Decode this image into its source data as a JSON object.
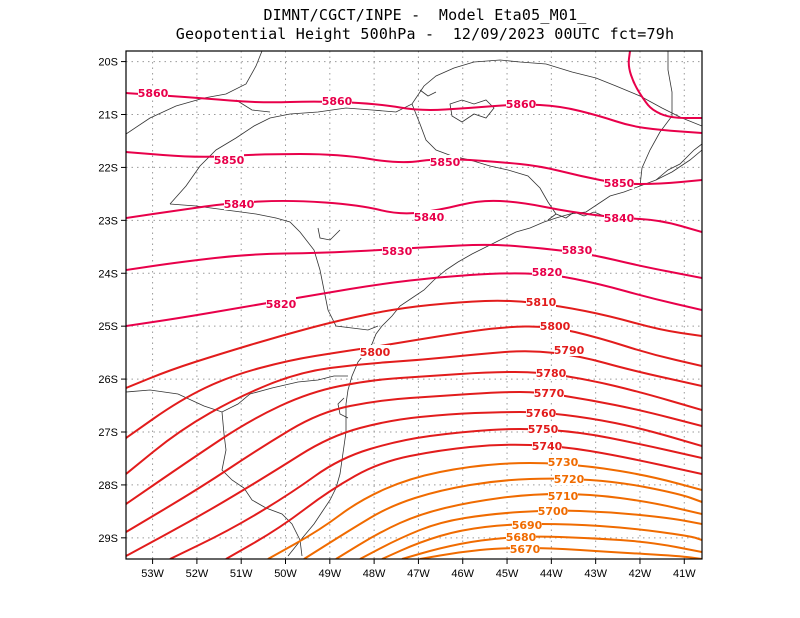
{
  "title": {
    "line1": "DIMNT/CGCT/INPE -  Model Eta05_M01_",
    "line2": "Geopotential Height 500hPa -  12/09/2023 00UTC fct=79h"
  },
  "chart_data": {
    "type": "contour",
    "variable": "Geopotential Height 500hPa",
    "units": "m",
    "xlim": [
      -53.6,
      -40.6
    ],
    "ylim": [
      -29.4,
      -19.8
    ],
    "x_ticks": [
      -53,
      -52,
      -51,
      -50,
      -49,
      -48,
      -47,
      -46,
      -45,
      -44,
      -43,
      -42,
      -41
    ],
    "x_tick_labels": [
      "53W",
      "52W",
      "51W",
      "50W",
      "49W",
      "48W",
      "47W",
      "46W",
      "45W",
      "44W",
      "43W",
      "42W",
      "41W"
    ],
    "y_ticks": [
      -20,
      -21,
      -22,
      -23,
      -24,
      -25,
      -26,
      -27,
      -28,
      -29
    ],
    "y_tick_labels": [
      "20S",
      "21S",
      "22S",
      "23S",
      "24S",
      "25S",
      "26S",
      "27S",
      "28S",
      "29S"
    ],
    "grid": true,
    "contour_interval": 10,
    "contours": [
      {
        "level": 5860,
        "labels": [
          "5860",
          "5860",
          "5860"
        ]
      },
      {
        "level": 5850,
        "labels": [
          "5850",
          "5850",
          "5850"
        ]
      },
      {
        "level": 5840,
        "labels": [
          "5840",
          "5840",
          "5840"
        ]
      },
      {
        "level": 5830,
        "labels": [
          "5830",
          "5830"
        ]
      },
      {
        "level": 5820,
        "labels": [
          "5820",
          "5820"
        ]
      },
      {
        "level": 5810,
        "labels": [
          "5810"
        ]
      },
      {
        "level": 5800,
        "labels": [
          "5800",
          "5800"
        ]
      },
      {
        "level": 5790,
        "labels": [
          "5790"
        ]
      },
      {
        "level": 5780,
        "labels": [
          "5780"
        ]
      },
      {
        "level": 5770,
        "labels": [
          "5770"
        ]
      },
      {
        "level": 5760,
        "labels": [
          "5760"
        ]
      },
      {
        "level": 5750,
        "labels": [
          "5750"
        ]
      },
      {
        "level": 5740,
        "labels": [
          "5740"
        ]
      },
      {
        "level": 5730,
        "labels": [
          "5730"
        ]
      },
      {
        "level": 5720,
        "labels": [
          "5720"
        ]
      },
      {
        "level": 5710,
        "labels": [
          "5710"
        ]
      },
      {
        "level": 5700,
        "labels": [
          "5700"
        ]
      },
      {
        "level": 5690,
        "labels": [
          "5690"
        ]
      },
      {
        "level": 5680,
        "labels": [
          "5680"
        ]
      },
      {
        "level": 5670,
        "labels": [
          "5670"
        ]
      }
    ],
    "colors": {
      "high": "#e8004a",
      "mid": "#e21c1c",
      "low": "#f06b00",
      "grid": "#9a9a9a",
      "coast": "#333333"
    }
  }
}
